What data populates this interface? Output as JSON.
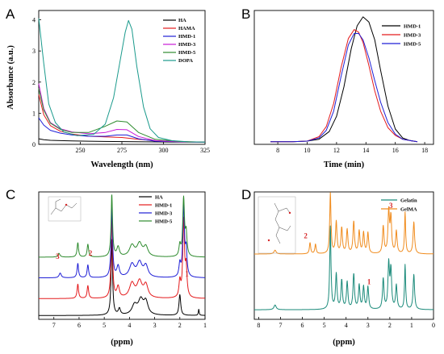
{
  "chart_data": [
    {
      "id": "A",
      "type": "line",
      "panel_label": "A",
      "xlabel": "Wavelength (nm)",
      "ylabel": "Absorbance (a.u.)",
      "xlim": [
        225,
        325
      ],
      "ylim": [
        0,
        4.3
      ],
      "xticks": [
        250,
        275,
        300,
        325
      ],
      "yticks": [
        0,
        1,
        2,
        3,
        4
      ],
      "legend_position": "top-right",
      "series": [
        {
          "name": "HA",
          "color": "#000000",
          "x": [
            225,
            228,
            232,
            238,
            245,
            255,
            270,
            290,
            310,
            325
          ],
          "y": [
            0.18,
            0.15,
            0.13,
            0.12,
            0.11,
            0.1,
            0.09,
            0.08,
            0.07,
            0.07
          ]
        },
        {
          "name": "HAMA",
          "color": "#e41a1c",
          "x": [
            225,
            228,
            232,
            238,
            245,
            255,
            265,
            275,
            285,
            300,
            325
          ],
          "y": [
            1.6,
            0.95,
            0.6,
            0.42,
            0.33,
            0.26,
            0.24,
            0.22,
            0.16,
            0.1,
            0.07
          ]
        },
        {
          "name": "HMD-1",
          "color": "#1f1fd6",
          "x": [
            225,
            228,
            232,
            238,
            245,
            255,
            265,
            272,
            278,
            285,
            295,
            310,
            325
          ],
          "y": [
            0.85,
            0.62,
            0.45,
            0.36,
            0.3,
            0.26,
            0.26,
            0.3,
            0.3,
            0.18,
            0.1,
            0.08,
            0.07
          ]
        },
        {
          "name": "HMD-3",
          "color": "#c71ad6",
          "x": [
            225,
            228,
            232,
            238,
            245,
            255,
            265,
            272,
            278,
            285,
            295,
            310,
            325
          ],
          "y": [
            1.95,
            1.15,
            0.7,
            0.5,
            0.4,
            0.34,
            0.38,
            0.48,
            0.47,
            0.25,
            0.12,
            0.08,
            0.07
          ]
        },
        {
          "name": "HMD-5",
          "color": "#2e8b2e",
          "x": [
            225,
            228,
            232,
            238,
            245,
            255,
            265,
            272,
            278,
            285,
            295,
            310,
            325
          ],
          "y": [
            1.8,
            1.1,
            0.68,
            0.48,
            0.38,
            0.38,
            0.58,
            0.75,
            0.72,
            0.38,
            0.16,
            0.09,
            0.07
          ]
        },
        {
          "name": "DOPA",
          "color": "#1a9a8c",
          "x": [
            225,
            228,
            231,
            235,
            240,
            248,
            258,
            265,
            270,
            274,
            277,
            279,
            281,
            284,
            288,
            292,
            297,
            305,
            315,
            325
          ],
          "y": [
            4.05,
            2.6,
            1.3,
            0.7,
            0.4,
            0.28,
            0.32,
            0.65,
            1.5,
            2.7,
            3.6,
            3.98,
            3.7,
            2.5,
            1.2,
            0.5,
            0.22,
            0.12,
            0.08,
            0.07
          ]
        }
      ]
    },
    {
      "id": "B",
      "type": "line",
      "panel_label": "B",
      "xlabel": "Time (min)",
      "ylabel": "",
      "xlim": [
        6.4,
        18.6
      ],
      "ylim": [
        0,
        1.05
      ],
      "xticks": [
        8,
        10,
        12,
        14,
        16,
        18
      ],
      "yticks": [],
      "legend_position": "top-right",
      "series": [
        {
          "name": "HMD-1",
          "color": "#000000",
          "x": [
            7.5,
            9,
            10,
            10.8,
            11.5,
            12,
            12.5,
            13,
            13.4,
            13.8,
            14.2,
            14.6,
            15,
            15.5,
            16,
            16.5,
            17,
            17.5
          ],
          "y": [
            0.02,
            0.02,
            0.025,
            0.04,
            0.1,
            0.22,
            0.45,
            0.75,
            0.93,
            1.0,
            0.96,
            0.82,
            0.58,
            0.3,
            0.12,
            0.05,
            0.03,
            0.02
          ]
        },
        {
          "name": "HMD-3",
          "color": "#e41a1c",
          "x": [
            7.5,
            9,
            10,
            10.8,
            11.3,
            11.8,
            12.3,
            12.8,
            13.2,
            13.5,
            13.8,
            14.2,
            14.6,
            15,
            15.5,
            16,
            16.5,
            17,
            17.5
          ],
          "y": [
            0.02,
            0.02,
            0.025,
            0.06,
            0.14,
            0.32,
            0.6,
            0.83,
            0.9,
            0.88,
            0.8,
            0.62,
            0.42,
            0.26,
            0.13,
            0.07,
            0.04,
            0.03,
            0.02
          ]
        },
        {
          "name": "HMD-5",
          "color": "#1f1fd6",
          "x": [
            7.5,
            9,
            10,
            10.8,
            11.3,
            11.8,
            12.3,
            12.8,
            13.2,
            13.5,
            13.8,
            14.2,
            14.6,
            15,
            15.5,
            16,
            16.5,
            17,
            17.5
          ],
          "y": [
            0.02,
            0.02,
            0.025,
            0.05,
            0.11,
            0.26,
            0.53,
            0.78,
            0.87,
            0.87,
            0.82,
            0.68,
            0.5,
            0.33,
            0.17,
            0.08,
            0.04,
            0.03,
            0.02
          ]
        }
      ]
    },
    {
      "id": "C",
      "type": "line",
      "panel_label": "C",
      "xlabel": "(ppm)",
      "ylabel": "",
      "xlim": [
        7.6,
        1
      ],
      "ylim": [
        0,
        4
      ],
      "xticks": [
        7,
        6,
        5,
        4,
        3,
        2,
        1
      ],
      "yticks": [],
      "legend_position": "top-right",
      "peak_labels": [
        {
          "text": "1",
          "x": 1.72,
          "y": 1.35
        },
        {
          "text": "2",
          "x": 5.55,
          "y": 2.0
        },
        {
          "text": "3",
          "x": 6.85,
          "y": 1.9
        }
      ],
      "series": [
        {
          "name": "HA",
          "color": "#000000",
          "offset": 0.12,
          "peaks": [
            [
              4.7,
              2.4,
              0.035
            ],
            [
              3.8,
              0.3,
              0.12
            ],
            [
              3.55,
              0.45,
              0.12
            ],
            [
              3.35,
              0.4,
              0.1
            ],
            [
              4.4,
              0.2,
              0.05
            ],
            [
              2.0,
              0.65,
              0.04
            ],
            [
              1.25,
              0.2,
              0.02
            ]
          ]
        },
        {
          "name": "HMD-1",
          "color": "#e41a1c",
          "offset": 0.65,
          "peaks": [
            [
              4.7,
              2.6,
              0.035
            ],
            [
              6.05,
              0.45,
              0.035
            ],
            [
              5.65,
              0.4,
              0.035
            ],
            [
              4.45,
              0.35,
              0.06
            ],
            [
              3.9,
              0.45,
              0.12
            ],
            [
              3.6,
              0.5,
              0.12
            ],
            [
              3.35,
              0.4,
              0.1
            ],
            [
              2.0,
              0.5,
              0.04
            ],
            [
              1.85,
              2.4,
              0.04
            ],
            [
              1.75,
              0.9,
              0.04
            ]
          ]
        },
        {
          "name": "HMD-3",
          "color": "#1f1fd6",
          "offset": 1.3,
          "peaks": [
            [
              4.7,
              2.3,
              0.035
            ],
            [
              6.75,
              0.15,
              0.05
            ],
            [
              6.05,
              0.45,
              0.035
            ],
            [
              5.65,
              0.4,
              0.035
            ],
            [
              4.45,
              0.35,
              0.06
            ],
            [
              3.9,
              0.4,
              0.12
            ],
            [
              3.6,
              0.45,
              0.12
            ],
            [
              3.35,
              0.35,
              0.1
            ],
            [
              2.0,
              0.4,
              0.04
            ],
            [
              1.85,
              2.2,
              0.04
            ],
            [
              1.75,
              0.8,
              0.04
            ]
          ]
        },
        {
          "name": "HMD-5",
          "color": "#2e8b2e",
          "offset": 1.95,
          "peaks": [
            [
              4.7,
              1.95,
              0.035
            ],
            [
              6.8,
              0.12,
              0.05
            ],
            [
              6.05,
              0.45,
              0.035
            ],
            [
              5.65,
              0.4,
              0.035
            ],
            [
              4.45,
              0.3,
              0.06
            ],
            [
              3.9,
              0.35,
              0.12
            ],
            [
              3.6,
              0.4,
              0.12
            ],
            [
              3.35,
              0.3,
              0.1
            ],
            [
              2.0,
              0.35,
              0.04
            ],
            [
              1.85,
              1.8,
              0.04
            ],
            [
              1.75,
              0.7,
              0.04
            ]
          ]
        }
      ]
    },
    {
      "id": "D",
      "type": "line",
      "panel_label": "D",
      "xlabel": "(ppm)",
      "ylabel": "",
      "xlim": [
        8.2,
        0
      ],
      "ylim": [
        0,
        4
      ],
      "xticks": [
        8,
        7,
        6,
        5,
        4,
        3,
        2,
        1,
        0
      ],
      "yticks": [],
      "legend_position": "top-right",
      "peak_labels": [
        {
          "text": "1",
          "x": 2.95,
          "y": 1.1
        },
        {
          "text": "2",
          "x": 5.85,
          "y": 2.55
        },
        {
          "text": "3",
          "x": 1.95,
          "y": 3.5
        }
      ],
      "series": [
        {
          "name": "Gelatin",
          "color": "#1a8a7a",
          "offset": 0.3,
          "peaks": [
            [
              7.25,
              0.15,
              0.06
            ],
            [
              4.72,
              2.6,
              0.035
            ],
            [
              4.45,
              1.1,
              0.04
            ],
            [
              4.2,
              0.9,
              0.04
            ],
            [
              3.95,
              0.85,
              0.04
            ],
            [
              3.65,
              1.1,
              0.04
            ],
            [
              3.4,
              0.75,
              0.04
            ],
            [
              3.2,
              0.7,
              0.04
            ],
            [
              3.0,
              0.7,
              0.04
            ],
            [
              2.3,
              0.95,
              0.04
            ],
            [
              2.05,
              1.4,
              0.04
            ],
            [
              1.95,
              1.2,
              0.04
            ],
            [
              1.7,
              0.75,
              0.04
            ],
            [
              1.3,
              1.4,
              0.03
            ],
            [
              0.9,
              1.1,
              0.04
            ]
          ]
        },
        {
          "name": "GelMA",
          "color": "#f08c1e",
          "offset": 2.05,
          "peaks": [
            [
              7.25,
              0.12,
              0.06
            ],
            [
              5.65,
              0.35,
              0.035
            ],
            [
              5.4,
              0.3,
              0.035
            ],
            [
              4.72,
              1.9,
              0.035
            ],
            [
              4.45,
              1.0,
              0.04
            ],
            [
              4.2,
              0.8,
              0.04
            ],
            [
              3.95,
              0.75,
              0.04
            ],
            [
              3.65,
              1.0,
              0.04
            ],
            [
              3.4,
              0.7,
              0.04
            ],
            [
              3.2,
              0.65,
              0.04
            ],
            [
              3.0,
              0.65,
              0.04
            ],
            [
              2.3,
              0.85,
              0.04
            ],
            [
              2.05,
              1.3,
              0.04
            ],
            [
              1.95,
              1.1,
              0.04
            ],
            [
              1.7,
              0.7,
              0.04
            ],
            [
              1.3,
              1.3,
              0.03
            ],
            [
              0.9,
              1.0,
              0.04
            ]
          ]
        }
      ]
    }
  ]
}
